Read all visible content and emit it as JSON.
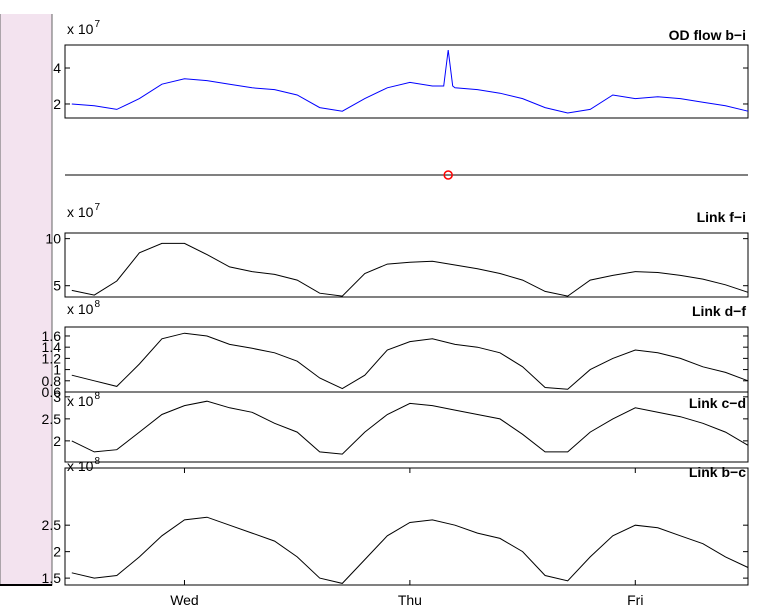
{
  "chart_data": [
    {
      "type": "line",
      "title": "OD flow b−i",
      "multiplier": "x 10",
      "exponent": "7",
      "color": "#0000ff",
      "xlim": [
        -0.53,
        2.5
      ],
      "ylim": [
        1.22,
        5.28
      ],
      "yticks": [
        2,
        4
      ],
      "x": [
        -0.5,
        -0.4,
        -0.3,
        -0.2,
        -0.1,
        0,
        0.1,
        0.2,
        0.3,
        0.4,
        0.5,
        0.6,
        0.7,
        0.8,
        0.9,
        1.0,
        1.1,
        1.15,
        1.17,
        1.19,
        1.2,
        1.3,
        1.4,
        1.5,
        1.6,
        1.7,
        1.8,
        1.9,
        2.0,
        2.1,
        2.2,
        2.3,
        2.4,
        2.5
      ],
      "values": [
        2.0,
        1.9,
        1.7,
        2.3,
        3.1,
        3.4,
        3.3,
        3.1,
        2.9,
        2.8,
        2.5,
        1.8,
        1.6,
        2.3,
        2.9,
        3.2,
        3.0,
        3.0,
        5.0,
        3.0,
        2.9,
        2.8,
        2.6,
        2.3,
        1.8,
        1.5,
        1.7,
        2.5,
        2.3,
        2.4,
        2.3,
        2.1,
        1.9,
        1.6
      ]
    },
    {
      "type": "marker",
      "color": "#ff0000",
      "xlim": [
        -0.53,
        2.5
      ],
      "x": [
        1.17
      ]
    },
    {
      "type": "line",
      "title": "Link f−i",
      "multiplier": "x 10",
      "exponent": "7",
      "color": "#000000",
      "xlim": [
        -0.53,
        2.5
      ],
      "ylim": [
        3.8,
        10.6
      ],
      "yticks": [
        5,
        10
      ],
      "x": [
        -0.5,
        -0.4,
        -0.3,
        -0.2,
        -0.1,
        0,
        0.1,
        0.2,
        0.3,
        0.4,
        0.5,
        0.6,
        0.7,
        0.8,
        0.9,
        1.0,
        1.1,
        1.2,
        1.3,
        1.4,
        1.5,
        1.6,
        1.7,
        1.8,
        1.9,
        2.0,
        2.1,
        2.2,
        2.3,
        2.4,
        2.5
      ],
      "values": [
        4.5,
        4.0,
        5.5,
        8.5,
        9.5,
        9.5,
        8.3,
        7.0,
        6.5,
        6.2,
        5.6,
        4.2,
        3.9,
        6.3,
        7.3,
        7.5,
        7.6,
        7.2,
        6.8,
        6.3,
        5.6,
        4.4,
        3.9,
        5.6,
        6.1,
        6.5,
        6.4,
        6.1,
        5.7,
        5.1,
        4.3
      ]
    },
    {
      "type": "line",
      "title": "Link d−f",
      "multiplier": "x 10",
      "exponent": "8",
      "color": "#000000",
      "xlim": [
        -0.53,
        2.5
      ],
      "ylim": [
        0.6,
        1.76
      ],
      "yticks": [
        0.6,
        0.8,
        1,
        1.2,
        1.4,
        1.6
      ],
      "x": [
        -0.5,
        -0.4,
        -0.3,
        -0.2,
        -0.1,
        0,
        0.1,
        0.2,
        0.3,
        0.4,
        0.5,
        0.6,
        0.7,
        0.8,
        0.9,
        1.0,
        1.1,
        1.2,
        1.3,
        1.4,
        1.5,
        1.6,
        1.7,
        1.8,
        1.9,
        2.0,
        2.1,
        2.2,
        2.3,
        2.4,
        2.5
      ],
      "values": [
        0.9,
        0.8,
        0.7,
        1.1,
        1.55,
        1.65,
        1.6,
        1.45,
        1.38,
        1.3,
        1.15,
        0.85,
        0.66,
        0.9,
        1.35,
        1.5,
        1.55,
        1.45,
        1.4,
        1.3,
        1.05,
        0.68,
        0.65,
        1.0,
        1.2,
        1.35,
        1.3,
        1.2,
        1.05,
        0.95,
        0.8
      ]
    },
    {
      "type": "line",
      "title": "Link c−d",
      "multiplier": "x 10",
      "exponent": "8",
      "color": "#000000",
      "xlim": [
        -0.53,
        2.5
      ],
      "ylim": [
        1.52,
        3.11
      ],
      "yticks": [
        2,
        2.5,
        3
      ],
      "x": [
        -0.5,
        -0.4,
        -0.3,
        -0.2,
        -0.1,
        0,
        0.1,
        0.2,
        0.3,
        0.4,
        0.5,
        0.6,
        0.7,
        0.8,
        0.9,
        1.0,
        1.1,
        1.2,
        1.3,
        1.4,
        1.5,
        1.6,
        1.7,
        1.8,
        1.9,
        2.0,
        2.1,
        2.2,
        2.3,
        2.4,
        2.5
      ],
      "values": [
        2.0,
        1.75,
        1.8,
        2.2,
        2.6,
        2.8,
        2.9,
        2.75,
        2.65,
        2.4,
        2.2,
        1.75,
        1.7,
        2.2,
        2.6,
        2.85,
        2.8,
        2.7,
        2.6,
        2.5,
        2.15,
        1.75,
        1.75,
        2.2,
        2.5,
        2.75,
        2.65,
        2.55,
        2.4,
        2.2,
        1.9
      ]
    },
    {
      "type": "line",
      "title": "Link b−c",
      "multiplier": "x 10",
      "exponent": "8",
      "color": "#000000",
      "xlim": [
        -0.53,
        2.5
      ],
      "ylim": [
        1.37,
        3.58
      ],
      "yticks": [
        1.5,
        2,
        2.5
      ],
      "xticks": [
        {
          "value": 0,
          "label": "Wed"
        },
        {
          "value": 1,
          "label": "Thu"
        },
        {
          "value": 2,
          "label": "Fri"
        }
      ],
      "x": [
        -0.5,
        -0.4,
        -0.3,
        -0.2,
        -0.1,
        0,
        0.1,
        0.2,
        0.3,
        0.4,
        0.5,
        0.6,
        0.7,
        0.8,
        0.9,
        1.0,
        1.1,
        1.2,
        1.3,
        1.4,
        1.5,
        1.6,
        1.7,
        1.8,
        1.9,
        2.0,
        2.1,
        2.2,
        2.3,
        2.4,
        2.5
      ],
      "values": [
        1.6,
        1.5,
        1.55,
        1.9,
        2.3,
        2.6,
        2.65,
        2.5,
        2.35,
        2.2,
        1.9,
        1.5,
        1.4,
        1.85,
        2.3,
        2.55,
        2.6,
        2.5,
        2.35,
        2.25,
        2.0,
        1.55,
        1.45,
        1.9,
        2.3,
        2.5,
        2.45,
        2.3,
        2.15,
        1.9,
        1.7
      ]
    }
  ]
}
